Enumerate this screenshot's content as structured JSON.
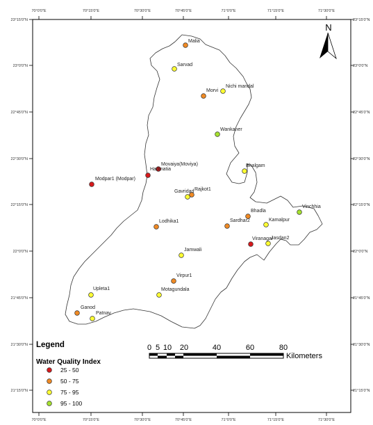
{
  "lon_ticks": [
    "70°0'0\"E",
    "70°15'0\"E",
    "70°30'0\"E",
    "70°45'0\"E",
    "71°0'0\"E",
    "71°15'0\"E",
    "71°30'0\"E"
  ],
  "lat_ticks": [
    "23°15'0\"N",
    "23°0'0\"N",
    "22°45'0\"N",
    "22°30'0\"N",
    "22°15'0\"N",
    "22°0'0\"N",
    "21°45'0\"N",
    "21°30'0\"N",
    "21°15'0\"N"
  ],
  "north_label": "N",
  "legend": {
    "title": "Legend",
    "subtitle": "Water Quality Index",
    "classes": [
      {
        "label": "25 - 50",
        "color": "#d7191c"
      },
      {
        "label": "50 - 75",
        "color": "#f08a24"
      },
      {
        "label": "75 - 95",
        "color": "#ffff33"
      },
      {
        "label": "95 - 100",
        "color": "#a6e22e"
      }
    ]
  },
  "scale_bar": {
    "ticks": [
      "0",
      "5",
      "10",
      "20",
      "40",
      "60",
      "80"
    ],
    "unit": "Kilometers"
  },
  "stations": [
    {
      "name": "Malia",
      "cls": 1
    },
    {
      "name": "Sarvad",
      "cls": 2
    },
    {
      "name": "Nichi mandal",
      "cls": 2
    },
    {
      "name": "Morvi",
      "cls": 1
    },
    {
      "name": "Wankaner",
      "cls": 3
    },
    {
      "name": "Bhalgam",
      "cls": 2
    },
    {
      "name": "Movaiya(Moviya)",
      "cls": 0
    },
    {
      "name": "Hadmatia",
      "cls": 0
    },
    {
      "name": "Modpar1 (Modpar)",
      "cls": 0
    },
    {
      "name": "Rajkot1",
      "cls": 1
    },
    {
      "name": "Gavridad",
      "cls": 2
    },
    {
      "name": "Vinchhia",
      "cls": 3
    },
    {
      "name": "Bhadla",
      "cls": 1
    },
    {
      "name": "Sardhar2",
      "cls": 1
    },
    {
      "name": "Kamalpur",
      "cls": 2
    },
    {
      "name": "Lodhika1",
      "cls": 1
    },
    {
      "name": "Viranagar",
      "cls": 0
    },
    {
      "name": "Jasdan2",
      "cls": 2
    },
    {
      "name": "Jamwali",
      "cls": 2
    },
    {
      "name": "Virpur1",
      "cls": 1
    },
    {
      "name": "Upleta1",
      "cls": 2
    },
    {
      "name": "Motagundala",
      "cls": 2
    },
    {
      "name": "Ganod",
      "cls": 1
    },
    {
      "name": "Patnav",
      "cls": 2
    }
  ]
}
